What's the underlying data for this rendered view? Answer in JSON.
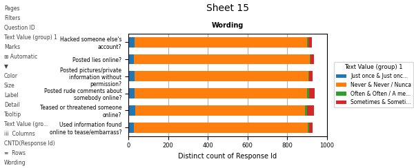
{
  "chart_data": {
    "type": "bar",
    "orientation": "horizontal",
    "stacked": true,
    "title": "Sheet 15",
    "subtitle": "Wording",
    "x_label": "Distinct count of Response Id",
    "categories": [
      "Hacked someone else's account?",
      "Posted lies online?",
      "Posted pictures/private information without permission?",
      "Posted rude comments about somebody online?",
      "Teased or threatened someone online?",
      "Used information found online to tease/embarrass?"
    ],
    "series": [
      {
        "name": "Just once & Just onc...",
        "values": [
          30,
          28,
          30,
          30,
          35,
          28
        ]
      },
      {
        "name": "Never & Never / Nunca",
        "values": [
          870,
          885,
          875,
          870,
          855,
          875
        ]
      },
      {
        "name": "Often & Often / A me...",
        "values": [
          5,
          5,
          5,
          8,
          8,
          5
        ]
      },
      {
        "name": "Sometimes & Someti...",
        "values": [
          20,
          15,
          18,
          30,
          35,
          20
        ]
      }
    ],
    "legend_title": "Text Value (group) 1",
    "legend": "right",
    "xlim": [
      0,
      1000
    ],
    "xticks": [
      0,
      200,
      400,
      600,
      800,
      1000
    ],
    "grid": true,
    "annotations": [
      "Pages",
      "Filters",
      "Question ID",
      "Text Value (group) 1",
      "Marks",
      "⊞ Automatic",
      "▼",
      "Color",
      "Size",
      "Label",
      "Detail",
      "Tooltip",
      "Text Value (gro...",
      "iii  Columns",
      "CNTD(Response Id)",
      "≡  Rows",
      "Wording"
    ]
  }
}
